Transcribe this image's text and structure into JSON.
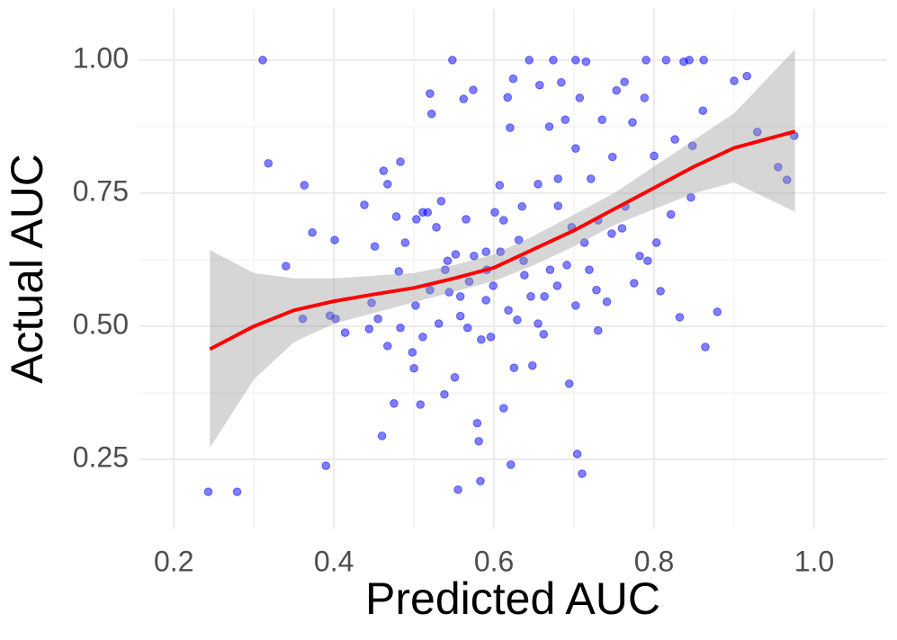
{
  "chart_data": {
    "type": "scatter",
    "xlabel": "Predicted AUC",
    "ylabel": "Actual AUC",
    "xlim": [
      0.157,
      1.09
    ],
    "ylim": [
      0.12,
      1.096
    ],
    "xticks": [
      0.2,
      0.4,
      0.6,
      0.8,
      {
        "value": 1.0,
        "label": "1.0"
      }
    ],
    "yticks": [
      {
        "value": 0.25,
        "label": "0.25"
      },
      {
        "value": 0.5,
        "label": "0.50"
      },
      {
        "value": 0.75,
        "label": "0.75"
      },
      {
        "value": 1.0,
        "label": "1.00"
      }
    ],
    "grid": true,
    "color": "#0000ff",
    "x": [
      0.243,
      0.279,
      0.311,
      0.318,
      0.34,
      0.363,
      0.361,
      0.373,
      0.395,
      0.401,
      0.39,
      0.402,
      0.414,
      0.438,
      0.444,
      0.447,
      0.451,
      0.46,
      0.462,
      0.467,
      0.475,
      0.478,
      0.481,
      0.483,
      0.489,
      0.498,
      0.5,
      0.503,
      0.508,
      0.511,
      0.517,
      0.52,
      0.522,
      0.528,
      0.534,
      0.538,
      0.542,
      0.548,
      0.551,
      0.555,
      0.558,
      0.562,
      0.565,
      0.569,
      0.574,
      0.579,
      0.581,
      0.583,
      0.59,
      0.596,
      0.601,
      0.607,
      0.612,
      0.617,
      0.62,
      0.621,
      0.624,
      0.625,
      0.631,
      0.638,
      0.644,
      0.648,
      0.655,
      0.657,
      0.662,
      0.669,
      0.674,
      0.68,
      0.684,
      0.689,
      0.694,
      0.697,
      0.702,
      0.704,
      0.707,
      0.713,
      0.71,
      0.715,
      0.721,
      0.728,
      0.73,
      0.735,
      0.741,
      0.748,
      0.753,
      0.76,
      0.763,
      0.773,
      0.782,
      0.788,
      0.79,
      0.8,
      0.803,
      0.808,
      0.815,
      0.821,
      0.826,
      0.832,
      0.837,
      0.844,
      0.846,
      0.848,
      0.862,
      0.864,
      0.861,
      0.879,
      0.9,
      0.916,
      0.929,
      0.955,
      0.966,
      0.975,
      0.502,
      0.52,
      0.531,
      0.539,
      0.552,
      0.558,
      0.567,
      0.575,
      0.584,
      0.591,
      0.599,
      0.608,
      0.618,
      0.629,
      0.637,
      0.646,
      0.655,
      0.663,
      0.67,
      0.679,
      0.691,
      0.702,
      0.719,
      0.73,
      0.747,
      0.764,
      0.775,
      0.792,
      0.59,
      0.544,
      0.511,
      0.483,
      0.467,
      0.455,
      0.635,
      0.612,
      0.68,
      0.702
    ],
    "y": [
      0.189,
      0.189,
      1.0,
      0.806,
      0.613,
      0.765,
      0.514,
      0.676,
      0.52,
      0.662,
      0.238,
      0.514,
      0.488,
      0.728,
      0.495,
      0.544,
      0.65,
      0.294,
      0.792,
      0.767,
      0.355,
      0.706,
      0.603,
      0.809,
      0.657,
      0.451,
      0.421,
      0.701,
      0.353,
      0.714,
      0.714,
      0.937,
      0.899,
      0.686,
      0.735,
      0.372,
      0.623,
      1.0,
      0.404,
      0.193,
      0.519,
      0.927,
      0.701,
      0.584,
      0.944,
      0.318,
      0.284,
      0.209,
      0.549,
      0.48,
      0.714,
      0.765,
      0.346,
      0.93,
      0.873,
      0.24,
      0.965,
      0.422,
      0.662,
      0.596,
      1.0,
      0.426,
      0.767,
      0.953,
      0.485,
      0.875,
      1.0,
      0.726,
      0.958,
      0.888,
      0.392,
      0.686,
      1.0,
      0.26,
      0.929,
      0.657,
      0.223,
      0.997,
      0.777,
      0.568,
      0.492,
      0.888,
      0.546,
      0.818,
      0.943,
      0.684,
      0.959,
      0.883,
      0.632,
      0.929,
      1.0,
      0.82,
      0.657,
      0.566,
      1.0,
      0.71,
      0.851,
      0.517,
      0.997,
      1.0,
      0.742,
      0.839,
      1.0,
      0.461,
      0.905,
      0.527,
      0.961,
      0.97,
      0.865,
      0.799,
      0.775,
      0.858,
      0.539,
      0.568,
      0.505,
      0.606,
      0.635,
      0.556,
      0.497,
      0.632,
      0.475,
      0.606,
      0.576,
      0.64,
      0.53,
      0.512,
      0.623,
      0.556,
      0.505,
      0.556,
      0.606,
      0.576,
      0.615,
      0.539,
      0.606,
      0.699,
      0.674,
      0.725,
      0.581,
      0.623,
      0.64,
      0.564,
      0.48,
      0.497,
      0.463,
      0.514,
      0.725,
      0.699,
      0.777,
      0.834
    ],
    "smooth": {
      "color": "#ff0000",
      "x": [
        0.245,
        0.3,
        0.35,
        0.4,
        0.45,
        0.5,
        0.55,
        0.6,
        0.65,
        0.7,
        0.75,
        0.8,
        0.85,
        0.9,
        0.976
      ],
      "values": [
        0.457,
        0.5,
        0.53,
        0.547,
        0.56,
        0.572,
        0.59,
        0.61,
        0.645,
        0.68,
        0.72,
        0.76,
        0.8,
        0.835,
        0.866
      ],
      "lower": [
        0.272,
        0.4,
        0.47,
        0.505,
        0.525,
        0.545,
        0.565,
        0.585,
        0.615,
        0.65,
        0.69,
        0.72,
        0.75,
        0.77,
        0.715
      ],
      "upper": [
        0.643,
        0.6,
        0.59,
        0.59,
        0.595,
        0.6,
        0.615,
        0.635,
        0.67,
        0.71,
        0.75,
        0.8,
        0.85,
        0.9,
        1.02
      ]
    }
  }
}
